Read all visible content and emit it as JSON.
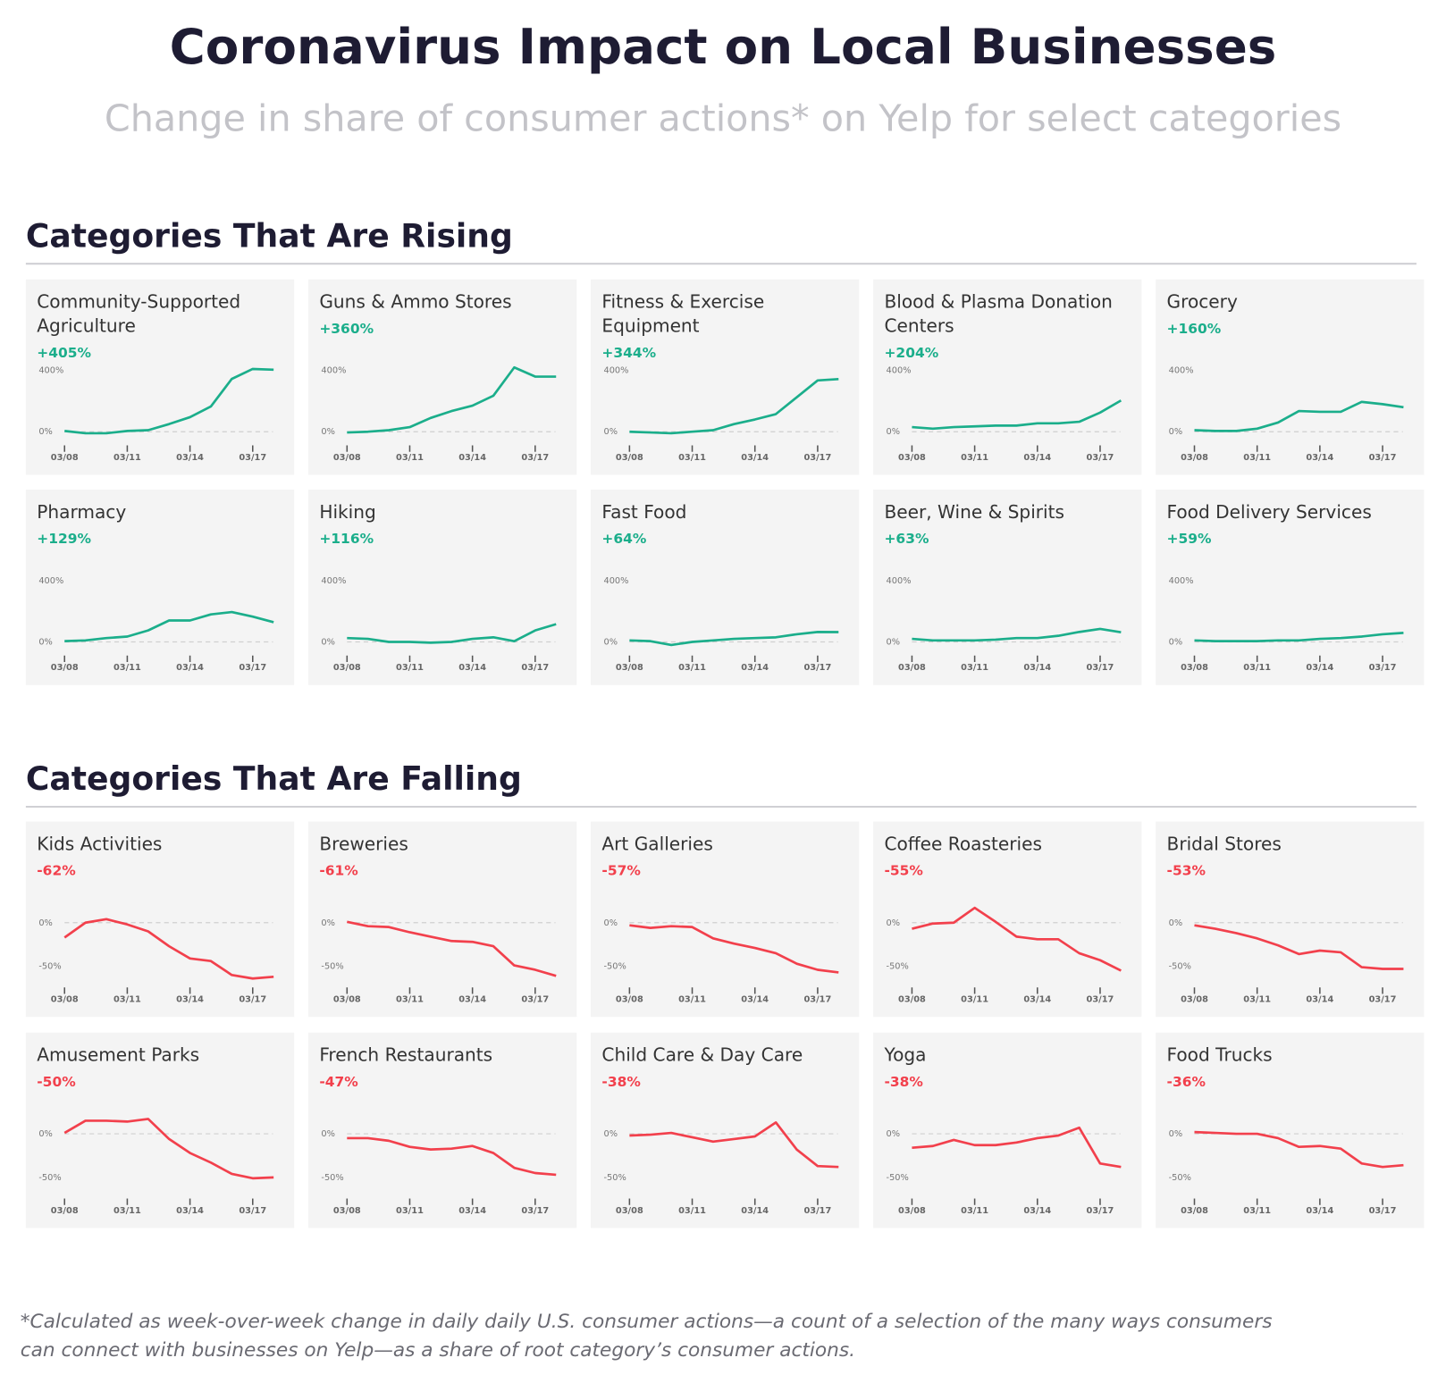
{
  "title": "Coronavirus Impact on Local Businesses",
  "subtitle": "Change in share of consumer actions* on Yelp for select categories",
  "sections": [
    {
      "title": "Categories That Are Rising"
    },
    {
      "title": "Categories That Are Falling"
    }
  ],
  "footnote": "*Calculated as week-over-week change in daily daily U.S. consumer actions—a count of a selection of the many ways consumers can connect with businesses on Yelp—as a share of root category’s consumer actions.",
  "chart_data": [
    {
      "type": "line",
      "title": "Community-Supported Agriculture",
      "annotation": "+405%",
      "color": "#1bae8b",
      "categories": [
        "03/08",
        null,
        null,
        "03/11",
        null,
        null,
        "03/14",
        null,
        null,
        "03/17",
        null
      ],
      "values": [
        5,
        -10,
        -10,
        5,
        10,
        50,
        95,
        165,
        345,
        410,
        405
      ],
      "ylim": [
        -65,
        465
      ],
      "yticks": [
        {
          "value": 0,
          "label": "0%"
        },
        {
          "value": 400,
          "label": "400%"
        }
      ]
    },
    {
      "type": "line",
      "title": "Guns & Ammo Stores",
      "annotation": "+360%",
      "color": "#1bae8b",
      "categories": [
        "03/08",
        null,
        null,
        "03/11",
        null,
        null,
        "03/14",
        null,
        null,
        "03/17",
        null
      ],
      "values": [
        -5,
        0,
        10,
        30,
        90,
        135,
        170,
        235,
        420,
        360,
        360
      ],
      "ylim": [
        -65,
        465
      ],
      "yticks": [
        {
          "value": 0,
          "label": "0%"
        },
        {
          "value": 400,
          "label": "400%"
        }
      ]
    },
    {
      "type": "line",
      "title": "Fitness & Exercise Equipment",
      "annotation": "+344%",
      "color": "#1bae8b",
      "categories": [
        "03/08",
        null,
        null,
        "03/11",
        null,
        null,
        "03/14",
        null,
        null,
        "03/17",
        null
      ],
      "values": [
        0,
        -5,
        -10,
        0,
        10,
        50,
        80,
        115,
        225,
        335,
        344
      ],
      "ylim": [
        -65,
        465
      ],
      "yticks": [
        {
          "value": 0,
          "label": "0%"
        },
        {
          "value": 400,
          "label": "400%"
        }
      ]
    },
    {
      "type": "line",
      "title": "Blood & Plasma Donation Centers",
      "annotation": "+204%",
      "color": "#1bae8b",
      "categories": [
        "03/08",
        null,
        null,
        "03/11",
        null,
        null,
        "03/14",
        null,
        null,
        "03/17",
        null
      ],
      "values": [
        30,
        20,
        30,
        35,
        40,
        40,
        55,
        55,
        65,
        125,
        204
      ],
      "ylim": [
        -65,
        465
      ],
      "yticks": [
        {
          "value": 0,
          "label": "0%"
        },
        {
          "value": 400,
          "label": "400%"
        }
      ]
    },
    {
      "type": "line",
      "title": "Grocery",
      "annotation": "+160%",
      "color": "#1bae8b",
      "categories": [
        "03/08",
        null,
        null,
        "03/11",
        null,
        null,
        "03/14",
        null,
        null,
        "03/17",
        null
      ],
      "values": [
        10,
        5,
        5,
        20,
        60,
        135,
        130,
        130,
        195,
        180,
        160
      ],
      "ylim": [
        -65,
        465
      ],
      "yticks": [
        {
          "value": 0,
          "label": "0%"
        },
        {
          "value": 400,
          "label": "400%"
        }
      ]
    },
    {
      "type": "line",
      "title": "Pharmacy",
      "annotation": "+129%",
      "color": "#1bae8b",
      "categories": [
        "03/08",
        null,
        null,
        "03/11",
        null,
        null,
        "03/14",
        null,
        null,
        "03/17",
        null
      ],
      "values": [
        5,
        10,
        25,
        35,
        75,
        140,
        140,
        180,
        195,
        165,
        129
      ],
      "ylim": [
        -65,
        465
      ],
      "yticks": [
        {
          "value": 0,
          "label": "0%"
        },
        {
          "value": 400,
          "label": "400%"
        }
      ]
    },
    {
      "type": "line",
      "title": "Hiking",
      "annotation": "+116%",
      "color": "#1bae8b",
      "categories": [
        "03/08",
        null,
        null,
        "03/11",
        null,
        null,
        "03/14",
        null,
        null,
        "03/17",
        null
      ],
      "values": [
        25,
        20,
        0,
        0,
        -5,
        0,
        20,
        30,
        5,
        75,
        116
      ],
      "ylim": [
        -65,
        465
      ],
      "yticks": [
        {
          "value": 0,
          "label": "0%"
        },
        {
          "value": 400,
          "label": "400%"
        }
      ]
    },
    {
      "type": "line",
      "title": "Fast Food",
      "annotation": "+64%",
      "color": "#1bae8b",
      "categories": [
        "03/08",
        null,
        null,
        "03/11",
        null,
        null,
        "03/14",
        null,
        null,
        "03/17",
        null
      ],
      "values": [
        10,
        5,
        -20,
        0,
        10,
        20,
        25,
        30,
        50,
        65,
        64
      ],
      "ylim": [
        -65,
        465
      ],
      "yticks": [
        {
          "value": 0,
          "label": "0%"
        },
        {
          "value": 400,
          "label": "400%"
        }
      ]
    },
    {
      "type": "line",
      "title": "Beer, Wine & Spirits",
      "annotation": "+63%",
      "color": "#1bae8b",
      "categories": [
        "03/08",
        null,
        null,
        "03/11",
        null,
        null,
        "03/14",
        null,
        null,
        "03/17",
        null
      ],
      "values": [
        20,
        10,
        10,
        10,
        15,
        25,
        25,
        40,
        65,
        85,
        63
      ],
      "ylim": [
        -65,
        465
      ],
      "yticks": [
        {
          "value": 0,
          "label": "0%"
        },
        {
          "value": 400,
          "label": "400%"
        }
      ]
    },
    {
      "type": "line",
      "title": "Food Delivery Services",
      "annotation": "+59%",
      "color": "#1bae8b",
      "categories": [
        "03/08",
        null,
        null,
        "03/11",
        null,
        null,
        "03/14",
        null,
        null,
        "03/17",
        null
      ],
      "values": [
        10,
        5,
        5,
        5,
        10,
        10,
        20,
        25,
        35,
        50,
        59
      ],
      "ylim": [
        -65,
        465
      ],
      "yticks": [
        {
          "value": 0,
          "label": "0%"
        },
        {
          "value": 400,
          "label": "400%"
        }
      ]
    },
    {
      "type": "line",
      "title": "Kids Activities",
      "annotation": "-62%",
      "color": "#f2404c",
      "categories": [
        "03/08",
        null,
        null,
        "03/11",
        null,
        null,
        "03/14",
        null,
        null,
        "03/17",
        null
      ],
      "values": [
        -17,
        0,
        4,
        -2,
        -10,
        -27,
        -41,
        -44,
        -60,
        -64,
        -62
      ],
      "ylim": [
        -70,
        23
      ],
      "yticks": [
        {
          "value": 0,
          "label": "0%"
        },
        {
          "value": -50,
          "label": "-50%"
        }
      ]
    },
    {
      "type": "line",
      "title": "Breweries",
      "annotation": "-61%",
      "color": "#f2404c",
      "categories": [
        "03/08",
        null,
        null,
        "03/11",
        null,
        null,
        "03/14",
        null,
        null,
        "03/17",
        null
      ],
      "values": [
        1,
        -4,
        -5,
        -11,
        -16,
        -21,
        -22,
        -27,
        -49,
        -54,
        -61
      ],
      "ylim": [
        -70,
        23
      ],
      "yticks": [
        {
          "value": 0,
          "label": "0%"
        },
        {
          "value": -50,
          "label": "-50%"
        }
      ]
    },
    {
      "type": "line",
      "title": "Art Galleries",
      "annotation": "-57%",
      "color": "#f2404c",
      "categories": [
        "03/08",
        null,
        null,
        "03/11",
        null,
        null,
        "03/14",
        null,
        null,
        "03/17",
        null
      ],
      "values": [
        -3,
        -6,
        -4,
        -5,
        -18,
        -24,
        -29,
        -35,
        -47,
        -54,
        -57
      ],
      "ylim": [
        -70,
        23
      ],
      "yticks": [
        {
          "value": 0,
          "label": "0%"
        },
        {
          "value": -50,
          "label": "-50%"
        }
      ]
    },
    {
      "type": "line",
      "title": "Coffee Roasteries",
      "annotation": "-55%",
      "color": "#f2404c",
      "categories": [
        "03/08",
        null,
        null,
        "03/11",
        null,
        null,
        "03/14",
        null,
        null,
        "03/17",
        null
      ],
      "values": [
        -7,
        -1,
        0,
        17,
        1,
        -16,
        -19,
        -19,
        -35,
        -43,
        -55
      ],
      "ylim": [
        -70,
        23
      ],
      "yticks": [
        {
          "value": 0,
          "label": "0%"
        },
        {
          "value": -50,
          "label": "-50%"
        }
      ]
    },
    {
      "type": "line",
      "title": "Bridal Stores",
      "annotation": "-53%",
      "color": "#f2404c",
      "categories": [
        "03/08",
        null,
        null,
        "03/11",
        null,
        null,
        "03/14",
        null,
        null,
        "03/17",
        null
      ],
      "values": [
        -3,
        -7,
        -12,
        -18,
        -26,
        -36,
        -32,
        -34,
        -51,
        -53,
        -53
      ],
      "ylim": [
        -70,
        23
      ],
      "yticks": [
        {
          "value": 0,
          "label": "0%"
        },
        {
          "value": -50,
          "label": "-50%"
        }
      ]
    },
    {
      "type": "line",
      "title": "Amusement Parks",
      "annotation": "-50%",
      "color": "#f2404c",
      "categories": [
        "03/08",
        null,
        null,
        "03/11",
        null,
        null,
        "03/14",
        null,
        null,
        "03/17",
        null
      ],
      "values": [
        1,
        15,
        15,
        14,
        17,
        -6,
        -22,
        -33,
        -46,
        -51,
        -50
      ],
      "ylim": [
        -70,
        23
      ],
      "yticks": [
        {
          "value": 0,
          "label": "0%"
        },
        {
          "value": -50,
          "label": "-50%"
        }
      ]
    },
    {
      "type": "line",
      "title": "French Restaurants",
      "annotation": "-47%",
      "color": "#f2404c",
      "categories": [
        "03/08",
        null,
        null,
        "03/11",
        null,
        null,
        "03/14",
        null,
        null,
        "03/17",
        null
      ],
      "values": [
        -5,
        -5,
        -8,
        -15,
        -18,
        -17,
        -14,
        -22,
        -39,
        -45,
        -47
      ],
      "ylim": [
        -70,
        23
      ],
      "yticks": [
        {
          "value": 0,
          "label": "0%"
        },
        {
          "value": -50,
          "label": "-50%"
        }
      ]
    },
    {
      "type": "line",
      "title": "Child Care & Day Care",
      "annotation": "-38%",
      "color": "#f2404c",
      "categories": [
        "03/08",
        null,
        null,
        "03/11",
        null,
        null,
        "03/14",
        null,
        null,
        "03/17",
        null
      ],
      "values": [
        -2,
        -1,
        1,
        -4,
        -9,
        -6,
        -3,
        13,
        -18,
        -37,
        -38
      ],
      "ylim": [
        -70,
        23
      ],
      "yticks": [
        {
          "value": 0,
          "label": "0%"
        },
        {
          "value": -50,
          "label": "-50%"
        }
      ]
    },
    {
      "type": "line",
      "title": "Yoga",
      "annotation": "-38%",
      "color": "#f2404c",
      "categories": [
        "03/08",
        null,
        null,
        "03/11",
        null,
        null,
        "03/14",
        null,
        null,
        "03/17",
        null
      ],
      "values": [
        -16,
        -14,
        -7,
        -13,
        -13,
        -10,
        -5,
        -2,
        7,
        -34,
        -38
      ],
      "ylim": [
        -70,
        23
      ],
      "yticks": [
        {
          "value": 0,
          "label": "0%"
        },
        {
          "value": -50,
          "label": "-50%"
        }
      ]
    },
    {
      "type": "line",
      "title": "Food Trucks",
      "annotation": "-36%",
      "color": "#f2404c",
      "categories": [
        "03/08",
        null,
        null,
        "03/11",
        null,
        null,
        "03/14",
        null,
        null,
        "03/17",
        null
      ],
      "values": [
        2,
        1,
        0,
        0,
        -5,
        -15,
        -14,
        -17,
        -34,
        -38,
        -36
      ],
      "ylim": [
        -70,
        23
      ],
      "yticks": [
        {
          "value": 0,
          "label": "0%"
        },
        {
          "value": -50,
          "label": "-50%"
        }
      ]
    }
  ]
}
